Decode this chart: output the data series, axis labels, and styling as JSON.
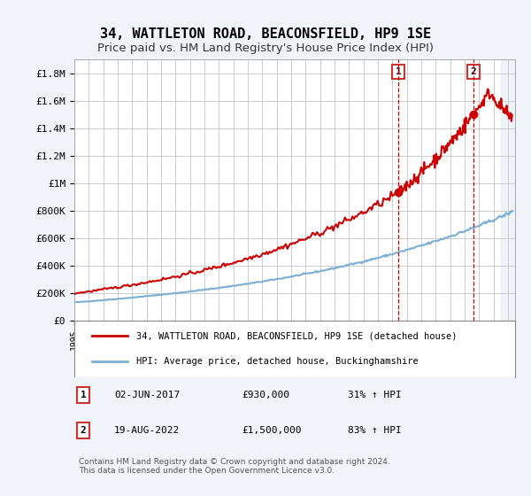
{
  "title": "34, WATTLETON ROAD, BEACONSFIELD, HP9 1SE",
  "subtitle": "Price paid vs. HM Land Registry's House Price Index (HPI)",
  "xlabel": "",
  "ylabel": "",
  "ylim": [
    0,
    1900000
  ],
  "xlim_start": 1995.0,
  "xlim_end": 2025.5,
  "yticks": [
    0,
    200000,
    400000,
    600000,
    800000,
    1000000,
    1200000,
    1400000,
    1600000,
    1800000
  ],
  "ytick_labels": [
    "£0",
    "£200K",
    "£400K",
    "£600K",
    "£800K",
    "£1M",
    "£1.2M",
    "£1.4M",
    "£1.6M",
    "£1.8M"
  ],
  "red_color": "#cc0000",
  "blue_color": "#7bafd4",
  "vline1_x": 2017.42,
  "vline2_x": 2022.63,
  "marker1_x": 2017.42,
  "marker1_y": 930000,
  "marker2_x": 2022.63,
  "marker2_y": 1500000,
  "label1_num": "1",
  "label2_num": "2",
  "legend_red": "34, WATTLETON ROAD, BEACONSFIELD, HP9 1SE (detached house)",
  "legend_blue": "HPI: Average price, detached house, Buckinghamshire",
  "annotation1": "1   02-JUN-2017        £930,000        31% ↑ HPI",
  "annotation2": "2   19-AUG-2022        £1,500,000      83% ↑ HPI",
  "footer": "Contains HM Land Registry data © Crown copyright and database right 2024.\nThis data is licensed under the Open Government Licence v3.0.",
  "bg_color": "#f0f4f8",
  "plot_bg": "#ffffff",
  "grid_color": "#cccccc",
  "title_fontsize": 11,
  "subtitle_fontsize": 9.5
}
